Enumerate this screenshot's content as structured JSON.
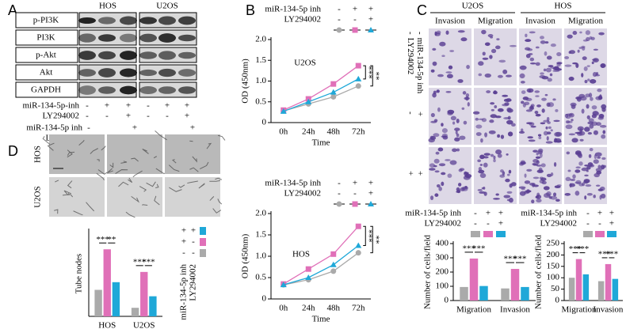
{
  "panel_labels": [
    "A",
    "B",
    "C",
    "D"
  ],
  "blot": {
    "cell_lines": [
      "HOS",
      "U2OS"
    ],
    "proteins": [
      "p-PI3K",
      "PI3K",
      "p-Akt",
      "Akt",
      "GAPDH"
    ],
    "treatments": [
      {
        "label": "miR-134-5p-inh",
        "signs": [
          "-",
          "+",
          "+",
          "-",
          "+",
          "+"
        ]
      },
      {
        "label": "LY294002",
        "signs": [
          "-",
          "-",
          "+",
          "-",
          "-",
          "+"
        ]
      }
    ]
  },
  "tube_images": {
    "treatments": [
      {
        "label": "miR-134-5p inh",
        "signs": [
          "-",
          "+",
          "+"
        ]
      },
      {
        "label": "LY294002",
        "signs": [
          "-",
          "-",
          "+"
        ]
      }
    ],
    "cell_lines": [
      "HOS",
      "U2OS"
    ]
  },
  "transwell_images": {
    "cell_lines": [
      "U2OS",
      "HOS"
    ],
    "assays": [
      "Invasion",
      "Migration",
      "Invasion",
      "Migration"
    ],
    "treatment_labels": [
      "miR-134-5p inh",
      "LY294002"
    ],
    "row_signs": [
      [
        "-",
        "-"
      ],
      [
        "+",
        "-"
      ],
      [
        "+",
        "+"
      ]
    ]
  },
  "chart_data": [
    {
      "type": "line",
      "subtitle": "U2OS",
      "y_label": "OD (450nm)",
      "x_label": "Time",
      "categories": [
        "0h",
        "24h",
        "48h",
        "72h"
      ],
      "ylim": [
        0,
        2
      ],
      "yticks": [
        0,
        0.5,
        {
          "value": 1,
          "label": "1.0"
        },
        1.5,
        {
          "value": 2,
          "label": "2.0"
        }
      ],
      "treatments": [
        {
          "label": "miR-134-5p inh",
          "signs": [
            "-",
            "+",
            "+"
          ]
        },
        {
          "label": "LY294002",
          "signs": [
            "-",
            "-",
            "+"
          ]
        }
      ],
      "series": [
        {
          "color": "#aaaaaa",
          "marker": "circle",
          "values": [
            0.28,
            0.45,
            0.62,
            0.88
          ]
        },
        {
          "color": "#e070b8",
          "marker": "square",
          "values": [
            0.3,
            0.57,
            0.93,
            1.37
          ]
        },
        {
          "color": "#1fa8d8",
          "marker": "triangle",
          "values": [
            0.27,
            0.5,
            0.73,
            1.05
          ]
        }
      ],
      "significance": [
        "***",
        "**"
      ]
    },
    {
      "type": "line",
      "subtitle": "HOS",
      "y_label": "OD (450nm)",
      "x_label": "Time",
      "categories": [
        "0h",
        "24h",
        "48h",
        "72h"
      ],
      "ylim": [
        0,
        2
      ],
      "yticks": [
        0,
        0.5,
        {
          "value": 1,
          "label": "1.0"
        },
        1.5,
        {
          "value": 2,
          "label": "2.0"
        }
      ],
      "treatments": [
        {
          "label": "miR-134-5p inh",
          "signs": [
            "-",
            "+",
            "+"
          ]
        },
        {
          "label": "LY294002",
          "signs": [
            "-",
            "-",
            "+"
          ]
        }
      ],
      "series": [
        {
          "color": "#aaaaaa",
          "marker": "circle",
          "values": [
            0.33,
            0.45,
            0.65,
            1.08
          ]
        },
        {
          "color": "#e070b8",
          "marker": "square",
          "values": [
            0.35,
            0.7,
            1.05,
            1.7
          ]
        },
        {
          "color": "#1fa8d8",
          "marker": "triangle",
          "values": [
            0.33,
            0.5,
            0.8,
            1.25
          ]
        }
      ],
      "significance": [
        "***",
        "**"
      ]
    },
    {
      "type": "bar",
      "y_label": "Number of cells/field",
      "categories": [
        "Migration",
        "Invasion"
      ],
      "ylim": [
        0,
        400
      ],
      "yticks": [
        0,
        100,
        200,
        300,
        400
      ],
      "treatments": [
        {
          "label": "miR-134-5p inh",
          "signs": [
            "-",
            "+",
            "+"
          ]
        },
        {
          "label": "LY294002",
          "signs": [
            "-",
            "-",
            "+"
          ]
        }
      ],
      "series": [
        {
          "color": "#aaaaaa",
          "values": [
            95,
            85
          ]
        },
        {
          "color": "#e070b8",
          "values": [
            295,
            222
          ]
        },
        {
          "color": "#1fa8d8",
          "values": [
            102,
            95
          ]
        }
      ],
      "significance": [
        [
          "***",
          "***"
        ],
        [
          "***",
          "***"
        ]
      ]
    },
    {
      "type": "bar",
      "y_label": "Number of cells/field",
      "categories": [
        "Migration",
        "Invasion"
      ],
      "ylim": [
        0,
        250
      ],
      "yticks": [
        0,
        50,
        100,
        150,
        200,
        250
      ],
      "treatments": [
        {
          "label": "miR-134-5p inh",
          "signs": [
            "-",
            "+",
            "+"
          ]
        },
        {
          "label": "LY294002",
          "signs": [
            "-",
            "-",
            "+"
          ]
        }
      ],
      "series": [
        {
          "color": "#aaaaaa",
          "values": [
            100,
            85
          ]
        },
        {
          "color": "#e070b8",
          "values": [
            182,
            160
          ]
        },
        {
          "color": "#1fa8d8",
          "values": [
            115,
            95
          ]
        }
      ],
      "significance": [
        [
          "***",
          "***"
        ],
        [
          "***",
          "***"
        ]
      ]
    },
    {
      "type": "bar",
      "y_label": "Tube nodes",
      "categories": [
        "HOS",
        "U2OS"
      ],
      "ylim": [
        0,
        200
      ],
      "treatments": [
        {
          "label": "miR-134-5p inh",
          "signs": [
            "-",
            "+",
            "+"
          ]
        },
        {
          "label": "LY294002",
          "signs": [
            "-",
            "-",
            "+"
          ]
        }
      ],
      "series": [
        {
          "color": "#aaaaaa",
          "values": [
            62,
            20
          ]
        },
        {
          "color": "#e070b8",
          "values": [
            157,
            104
          ]
        },
        {
          "color": "#1fa8d8",
          "values": [
            80,
            47
          ]
        }
      ],
      "significance": [
        [
          "***",
          "**"
        ],
        [
          "***",
          "***"
        ]
      ]
    }
  ]
}
